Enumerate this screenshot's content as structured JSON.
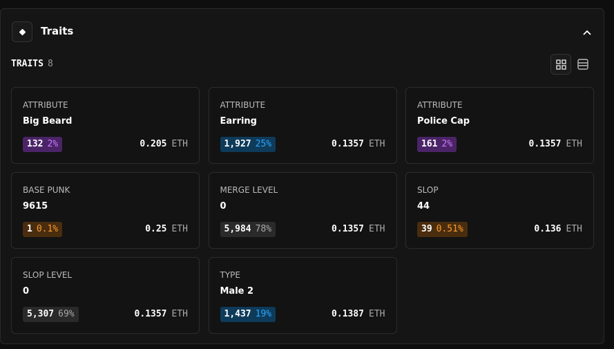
{
  "header": {
    "title": "Traits"
  },
  "summary": {
    "label": "TRAITS",
    "count": "8"
  },
  "currency": "ETH",
  "traits": [
    {
      "type": "ATTRIBUTE",
      "value": "Big Beard",
      "count": "132",
      "percent": "2%",
      "price": "0.205",
      "color": "purple"
    },
    {
      "type": "ATTRIBUTE",
      "value": "Earring",
      "count": "1,927",
      "percent": "25%",
      "price": "0.1357",
      "color": "blue"
    },
    {
      "type": "ATTRIBUTE",
      "value": "Police Cap",
      "count": "161",
      "percent": "2%",
      "price": "0.1357",
      "color": "purple"
    },
    {
      "type": "BASE PUNK",
      "value": "9615",
      "count": "1",
      "percent": "0.1%",
      "price": "0.25",
      "color": "orange"
    },
    {
      "type": "MERGE LEVEL",
      "value": "0",
      "count": "5,984",
      "percent": "78%",
      "price": "0.1357",
      "color": "gray"
    },
    {
      "type": "SLOP",
      "value": "44",
      "count": "39",
      "percent": "0.51%",
      "price": "0.136",
      "color": "orange"
    },
    {
      "type": "SLOP LEVEL",
      "value": "0",
      "count": "5,307",
      "percent": "69%",
      "price": "0.1357",
      "color": "gray"
    },
    {
      "type": "TYPE",
      "value": "Male 2",
      "count": "1,437",
      "percent": "19%",
      "price": "0.1387",
      "color": "blue"
    }
  ]
}
